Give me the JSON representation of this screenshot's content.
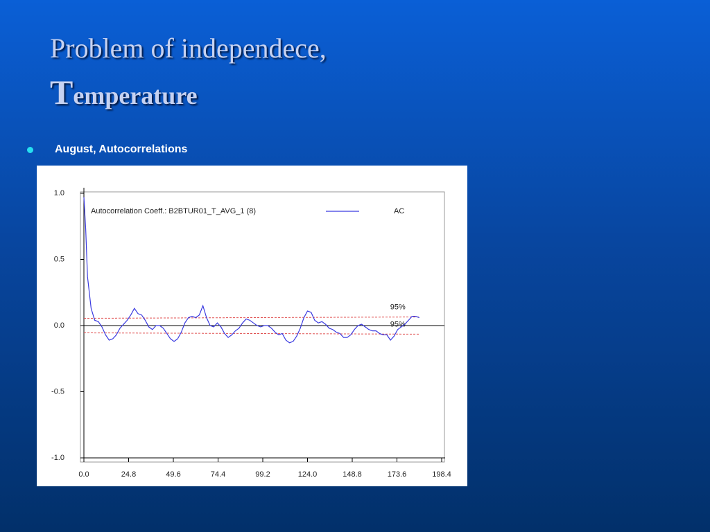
{
  "slide": {
    "title_line1": "Problem of independece,",
    "title_line2": "Temperature",
    "bullet": "August, Autocorrelations"
  },
  "chart_data": {
    "type": "line",
    "title": "Autocorrelation Coeff.: B2BTUR01_T_AVG_1  (8)",
    "x": [
      0,
      1,
      2,
      4,
      6,
      8,
      10,
      12,
      14,
      16,
      18,
      20,
      22,
      24,
      26,
      28,
      30,
      32,
      34,
      36,
      38,
      40,
      42,
      44,
      46,
      48,
      50,
      52,
      54,
      56,
      58,
      60,
      62,
      64,
      66,
      68,
      70,
      72,
      74,
      76,
      78,
      80,
      82,
      84,
      86,
      88,
      90,
      92,
      94,
      96,
      98,
      100,
      102,
      104,
      106,
      108,
      110,
      112,
      114,
      116,
      118,
      120,
      122,
      124,
      126,
      128,
      130,
      132,
      134,
      136,
      138,
      140,
      142,
      144,
      146,
      148,
      150,
      152,
      154,
      156,
      158,
      160,
      162,
      164,
      166,
      168,
      170,
      172,
      174,
      176,
      178,
      180,
      182,
      184,
      186
    ],
    "series": [
      {
        "name": "AC",
        "color": "#3a3ae0",
        "values": [
          0.97,
          0.73,
          0.37,
          0.13,
          0.04,
          0.03,
          -0.01,
          -0.07,
          -0.11,
          -0.1,
          -0.07,
          -0.02,
          0.01,
          0.04,
          0.08,
          0.13,
          0.09,
          0.08,
          0.04,
          -0.01,
          -0.03,
          0.0,
          0.0,
          -0.02,
          -0.06,
          -0.1,
          -0.12,
          -0.1,
          -0.05,
          0.02,
          0.06,
          0.07,
          0.06,
          0.08,
          0.15,
          0.06,
          0.0,
          -0.01,
          0.02,
          -0.01,
          -0.06,
          -0.09,
          -0.07,
          -0.04,
          -0.02,
          0.02,
          0.05,
          0.04,
          0.02,
          0.0,
          -0.01,
          0.0,
          0.0,
          -0.02,
          -0.05,
          -0.07,
          -0.06,
          -0.11,
          -0.13,
          -0.12,
          -0.08,
          -0.02,
          0.06,
          0.11,
          0.1,
          0.04,
          0.02,
          0.03,
          0.01,
          -0.02,
          -0.03,
          -0.05,
          -0.06,
          -0.09,
          -0.09,
          -0.07,
          -0.03,
          0.0,
          0.01,
          -0.01,
          -0.03,
          -0.04,
          -0.04,
          -0.06,
          -0.07,
          -0.07,
          -0.11,
          -0.08,
          -0.03,
          -0.01,
          0.01,
          0.04,
          0.07,
          0.07,
          0.06
        ]
      }
    ],
    "confidence_lines": [
      {
        "label": "95%",
        "color": "#e05050",
        "x": [
          0,
          186
        ],
        "values": [
          0.055,
          0.065
        ]
      },
      {
        "label": "95%",
        "color": "#e05050",
        "x": [
          0,
          186
        ],
        "values": [
          -0.055,
          -0.065
        ]
      }
    ],
    "xlim": [
      0,
      198.4
    ],
    "xticks": [
      {
        "value": 0,
        "label": "0.0"
      },
      24.8,
      49.6,
      74.4,
      99.2,
      {
        "value": 124,
        "label": "124.0"
      },
      148.8,
      173.6,
      198.4
    ],
    "ylim": [
      -1,
      1
    ],
    "yticks": [
      {
        "value": 1,
        "label": "1.0"
      },
      0.5,
      {
        "value": 0,
        "label": "0.0"
      },
      -0.5,
      {
        "value": -1,
        "label": "-1.0"
      }
    ]
  }
}
